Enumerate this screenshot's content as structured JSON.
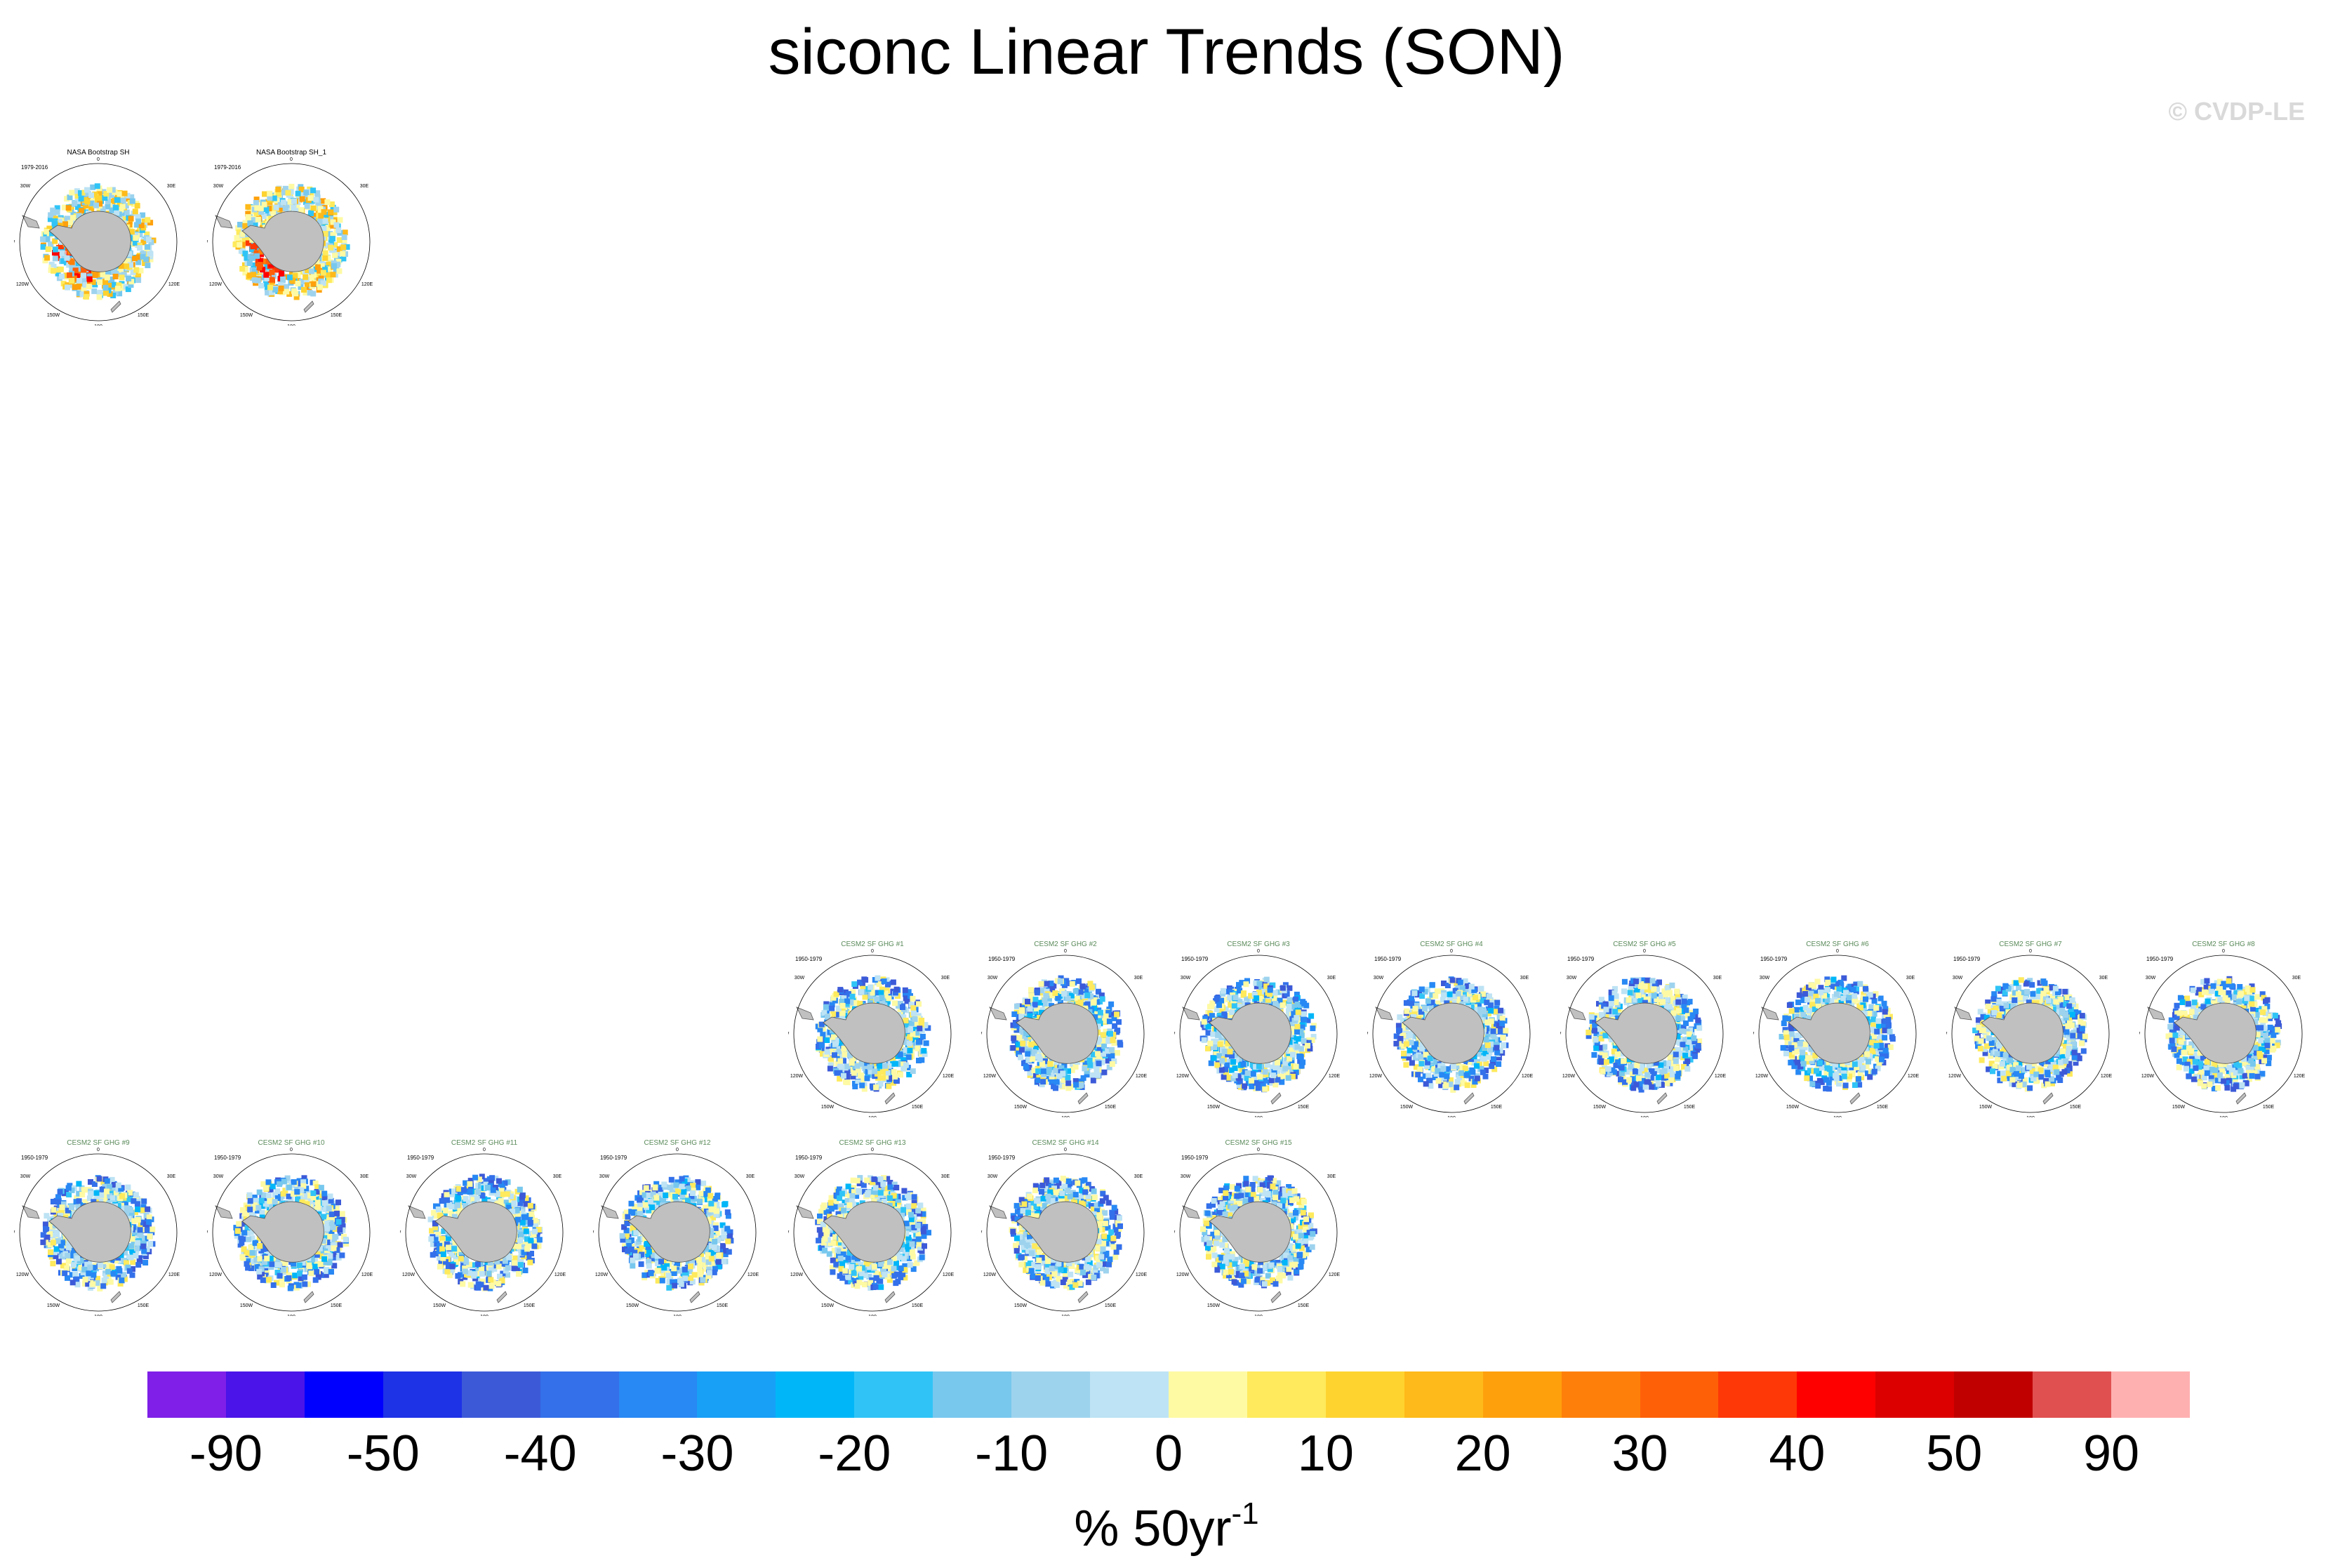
{
  "title": "siconc Linear Trends (SON)",
  "credit": "© CVDP-LE",
  "units": {
    "base": "% 50yr",
    "exponent": "-1"
  },
  "map_labels": {
    "top": "0",
    "left": "60W",
    "left_upper": "30W",
    "left_lower": "120W",
    "right": "60E",
    "right_upper": "30E",
    "right_lower": "120E",
    "bottom": "180",
    "bottom_left": "150W",
    "bottom_right": "150E"
  },
  "colors": {
    "land": "#c0c0c0",
    "ocean": "#ffffff",
    "outline": "#555555"
  },
  "panels": [
    {
      "title": "NASA Bootstrap SH",
      "period": "1979-2016",
      "group": "obs",
      "style": "obs"
    },
    {
      "title": "NASA Bootstrap SH_1",
      "period": "1979-2016",
      "group": "obs",
      "style": "obs"
    },
    {
      "title": "CESM2 SF GHG #1",
      "period": "1950-1979",
      "group": "model",
      "style": "model"
    },
    {
      "title": "CESM2 SF GHG #2",
      "period": "1950-1979",
      "group": "model",
      "style": "model"
    },
    {
      "title": "CESM2 SF GHG #3",
      "period": "1950-1979",
      "group": "model",
      "style": "model"
    },
    {
      "title": "CESM2 SF GHG #4",
      "period": "1950-1979",
      "group": "model",
      "style": "model"
    },
    {
      "title": "CESM2 SF GHG #5",
      "period": "1950-1979",
      "group": "model",
      "style": "model"
    },
    {
      "title": "CESM2 SF GHG #6",
      "period": "1950-1979",
      "group": "model",
      "style": "model"
    },
    {
      "title": "CESM2 SF GHG #7",
      "period": "1950-1979",
      "group": "model",
      "style": "model"
    },
    {
      "title": "CESM2 SF GHG #8",
      "period": "1950-1979",
      "group": "model",
      "style": "model"
    },
    {
      "title": "CESM2 SF GHG #9",
      "period": "1950-1979",
      "group": "model",
      "style": "model"
    },
    {
      "title": "CESM2 SF GHG #10",
      "period": "1950-1979",
      "group": "model",
      "style": "model"
    },
    {
      "title": "CESM2 SF GHG #11",
      "period": "1950-1979",
      "group": "model",
      "style": "model"
    },
    {
      "title": "CESM2 SF GHG #12",
      "period": "1950-1979",
      "group": "model",
      "style": "model"
    },
    {
      "title": "CESM2 SF GHG #13",
      "period": "1950-1979",
      "group": "model",
      "style": "model"
    },
    {
      "title": "CESM2 SF GHG #14",
      "period": "1950-1979",
      "group": "model",
      "style": "model"
    },
    {
      "title": "CESM2 SF GHG #15",
      "period": "1950-1979",
      "group": "model",
      "style": "model"
    }
  ],
  "colorbar": {
    "colors": [
      "#7f1fe8",
      "#4b14e8",
      "#0000ff",
      "#1e32e6",
      "#3c5ad8",
      "#3370ea",
      "#2888f4",
      "#18a0f7",
      "#00b6f8",
      "#30c4f6",
      "#78c8ee",
      "#9ed3ee",
      "#bde3f4",
      "#fefaa4",
      "#feea5c",
      "#fed330",
      "#feba1a",
      "#fea00c",
      "#fe800a",
      "#fe6008",
      "#fe3806",
      "#fe0000",
      "#dc0000",
      "#c00000",
      "#e05050",
      "#feb0b0"
    ],
    "labels": [
      "-90",
      "-50",
      "-40",
      "-30",
      "-20",
      "-10",
      "0",
      "10",
      "20",
      "30",
      "40",
      "50",
      "90"
    ]
  }
}
